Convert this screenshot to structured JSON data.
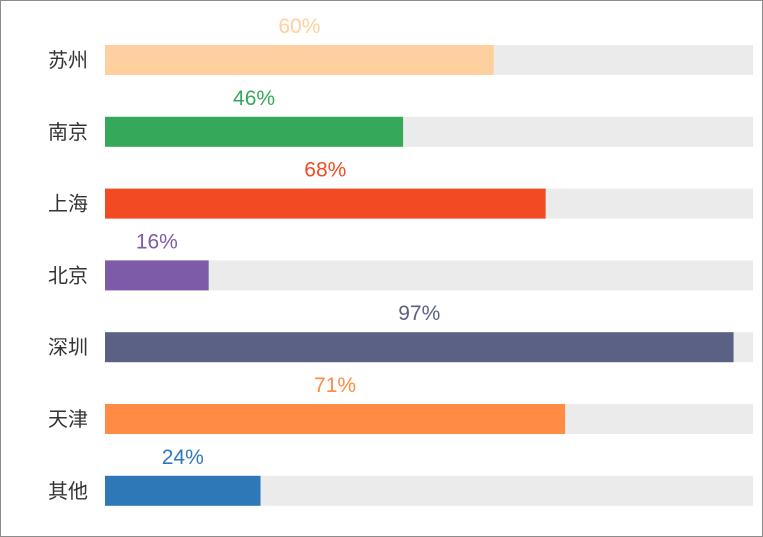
{
  "chart_data": {
    "type": "bar",
    "orientation": "horizontal",
    "categories": [
      "苏州",
      "南京",
      "上海",
      "北京",
      "深圳",
      "天津",
      "其他"
    ],
    "values": [
      60,
      46,
      68,
      16,
      97,
      71,
      24
    ],
    "value_labels": [
      "60%",
      "46%",
      "68%",
      "16%",
      "97%",
      "71%",
      "24%"
    ],
    "colors": [
      "#ffd09f",
      "#36a85a",
      "#f24a22",
      "#7e5ba8",
      "#5a6185",
      "#ff8b45",
      "#2f78b8"
    ],
    "track_color": "#ebebeb",
    "xlim": [
      0,
      100
    ],
    "grid": false,
    "legend": "none",
    "title": "",
    "xlabel": "",
    "ylabel": ""
  }
}
